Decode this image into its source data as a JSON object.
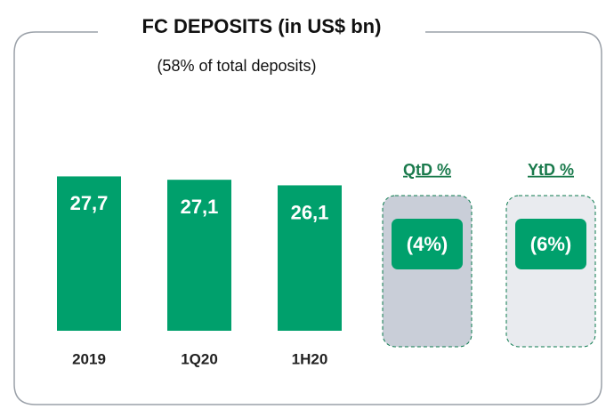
{
  "chart_data": {
    "type": "bar",
    "title": "FC DEPOSITS (in US$ bn)",
    "subtitle": "(58% of total deposits)",
    "categories": [
      "2019",
      "1Q20",
      "1H20"
    ],
    "values": [
      27.7,
      27.1,
      26.1
    ],
    "value_labels": [
      "27,7",
      "27,1",
      "26,1"
    ],
    "color": "#00a06c",
    "ylim": [
      0,
      30
    ],
    "annotations": [
      {
        "heading": "QtD %",
        "text": "(4%)",
        "box_color": "#c9ced8"
      },
      {
        "heading": "YtD %",
        "text": "(6%)",
        "box_color": "#e9ebef"
      }
    ]
  }
}
